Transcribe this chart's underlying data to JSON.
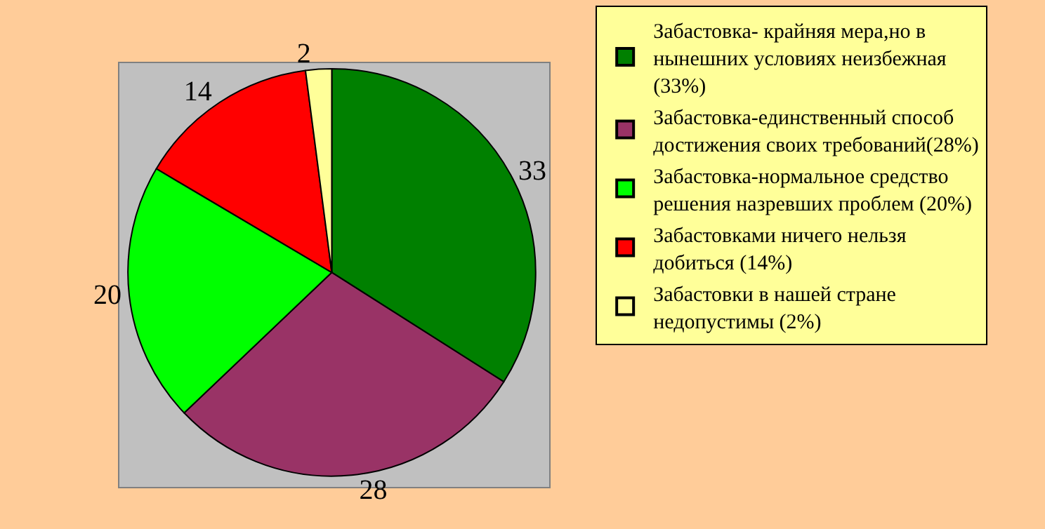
{
  "chart_data": {
    "type": "pie",
    "categories": [
      "Забастовка- крайняя мера,но в нынешних условиях неизбежная (33%)",
      "Забастовка-единственный способ достижения своих требований(28%)",
      "Забастовка-нормальное средство решения назревших проблем (20%)",
      "Забастовками ничего нельзя добиться (14%)",
      "Забастовки в нашей стране недопустимы (2%)"
    ],
    "values": [
      33,
      28,
      20,
      14,
      2
    ],
    "colors": [
      "#008000",
      "#993366",
      "#00ff00",
      "#ff0000",
      "#ffff99"
    ],
    "data_labels": true,
    "legend": "right"
  }
}
